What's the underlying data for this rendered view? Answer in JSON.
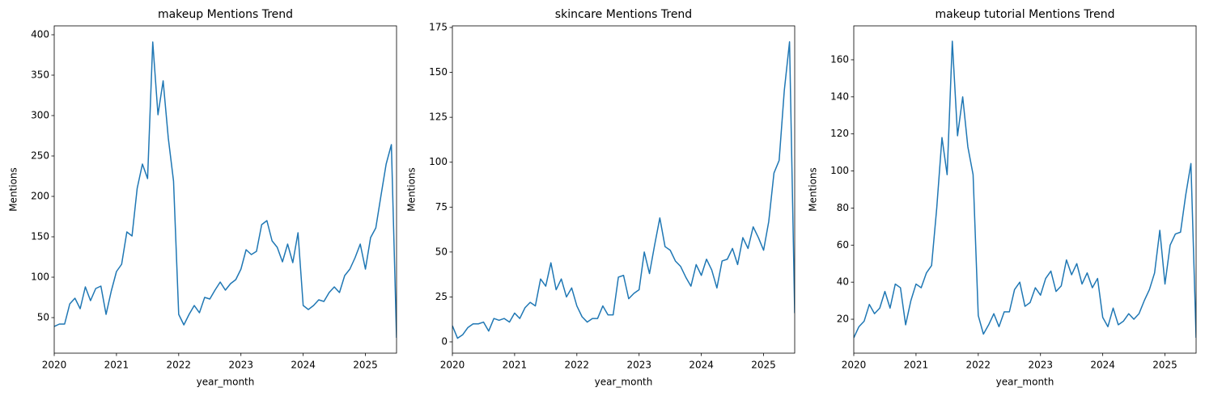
{
  "chart_data": [
    {
      "type": "line",
      "title": "makeup Mentions Trend",
      "xlabel": "year_month",
      "ylabel": "Mentions",
      "color": "#1f77b4",
      "x": [
        2020,
        2020.083,
        2020.167,
        2020.25,
        2020.333,
        2020.417,
        2020.5,
        2020.583,
        2020.667,
        2020.75,
        2020.833,
        2020.917,
        2021,
        2021.083,
        2021.167,
        2021.25,
        2021.333,
        2021.417,
        2021.5,
        2021.583,
        2021.667,
        2021.75,
        2021.833,
        2021.917,
        2022,
        2022.083,
        2022.167,
        2022.25,
        2022.333,
        2022.417,
        2022.5,
        2022.583,
        2022.667,
        2022.75,
        2022.833,
        2022.917,
        2023,
        2023.083,
        2023.167,
        2023.25,
        2023.333,
        2023.417,
        2023.5,
        2023.583,
        2023.667,
        2023.75,
        2023.833,
        2023.917,
        2024,
        2024.083,
        2024.167,
        2024.25,
        2024.333,
        2024.417,
        2024.5,
        2024.583,
        2024.667,
        2024.75,
        2024.833,
        2024.917,
        2025,
        2025.083,
        2025.167,
        2025.25,
        2025.333,
        2025.417,
        2025.5
      ],
      "values": [
        39,
        42,
        42,
        67,
        74,
        61,
        88,
        71,
        86,
        89,
        54,
        83,
        107,
        116,
        156,
        151,
        210,
        240,
        222,
        391,
        301,
        343,
        272,
        219,
        54,
        41,
        54,
        65,
        56,
        75,
        73,
        84,
        94,
        84,
        92,
        97,
        110,
        134,
        128,
        132,
        165,
        170,
        145,
        137,
        119,
        141,
        118,
        155,
        65,
        60,
        65,
        72,
        70,
        81,
        88,
        81,
        102,
        110,
        124,
        141,
        110,
        149,
        161,
        201,
        240,
        264,
        25
      ],
      "xlim": [
        2020,
        2025.5
      ],
      "xticks": [
        2020,
        2021,
        2022,
        2023,
        2024,
        2025
      ],
      "ylim": [
        6,
        411
      ],
      "yticks": [
        50,
        100,
        150,
        200,
        250,
        300,
        350,
        400
      ]
    },
    {
      "type": "line",
      "title": "skincare Mentions Trend",
      "xlabel": "year_month",
      "ylabel": "Mentions",
      "color": "#1f77b4",
      "x": [
        2020,
        2020.083,
        2020.167,
        2020.25,
        2020.333,
        2020.417,
        2020.5,
        2020.583,
        2020.667,
        2020.75,
        2020.833,
        2020.917,
        2021,
        2021.083,
        2021.167,
        2021.25,
        2021.333,
        2021.417,
        2021.5,
        2021.583,
        2021.667,
        2021.75,
        2021.833,
        2021.917,
        2022,
        2022.083,
        2022.167,
        2022.25,
        2022.333,
        2022.417,
        2022.5,
        2022.583,
        2022.667,
        2022.75,
        2022.833,
        2022.917,
        2023,
        2023.083,
        2023.167,
        2023.25,
        2023.333,
        2023.417,
        2023.5,
        2023.583,
        2023.667,
        2023.75,
        2023.833,
        2023.917,
        2024,
        2024.083,
        2024.167,
        2024.25,
        2024.333,
        2024.417,
        2024.5,
        2024.583,
        2024.667,
        2024.75,
        2024.833,
        2024.917,
        2025,
        2025.083,
        2025.167,
        2025.25,
        2025.333,
        2025.417,
        2025.5
      ],
      "values": [
        9,
        2,
        4,
        8,
        10,
        10,
        11,
        6,
        13,
        12,
        13,
        11,
        16,
        13,
        19,
        22,
        20,
        35,
        31,
        44,
        29,
        35,
        25,
        30,
        20,
        14,
        11,
        13,
        13,
        20,
        15,
        15,
        36,
        37,
        24,
        27,
        29,
        50,
        38,
        54,
        69,
        53,
        51,
        45,
        42,
        36,
        31,
        43,
        37,
        46,
        40,
        30,
        45,
        46,
        52,
        43,
        58,
        52,
        64,
        58,
        51,
        67,
        94,
        101,
        140,
        167,
        16
      ],
      "xlim": [
        2020,
        2025.5
      ],
      "xticks": [
        2020,
        2021,
        2022,
        2023,
        2024,
        2025
      ],
      "ylim": [
        -6.3,
        175.9
      ],
      "yticks": [
        0,
        25,
        50,
        75,
        100,
        125,
        150,
        175
      ]
    },
    {
      "type": "line",
      "title": "makeup tutorial Mentions Trend",
      "xlabel": "year_month",
      "ylabel": "Mentions",
      "color": "#1f77b4",
      "x": [
        2020,
        2020.083,
        2020.167,
        2020.25,
        2020.333,
        2020.417,
        2020.5,
        2020.583,
        2020.667,
        2020.75,
        2020.833,
        2020.917,
        2021,
        2021.083,
        2021.167,
        2021.25,
        2021.333,
        2021.417,
        2021.5,
        2021.583,
        2021.667,
        2021.75,
        2021.833,
        2021.917,
        2022,
        2022.083,
        2022.167,
        2022.25,
        2022.333,
        2022.417,
        2022.5,
        2022.583,
        2022.667,
        2022.75,
        2022.833,
        2022.917,
        2023,
        2023.083,
        2023.167,
        2023.25,
        2023.333,
        2023.417,
        2023.5,
        2023.583,
        2023.667,
        2023.75,
        2023.833,
        2023.917,
        2024,
        2024.083,
        2024.167,
        2024.25,
        2024.333,
        2024.417,
        2024.5,
        2024.583,
        2024.667,
        2024.75,
        2024.833,
        2024.917,
        2025,
        2025.083,
        2025.167,
        2025.25,
        2025.333,
        2025.417,
        2025.5
      ],
      "values": [
        10,
        16,
        19,
        28,
        23,
        26,
        35,
        26,
        39,
        37,
        17,
        30,
        39,
        37,
        45,
        49,
        80,
        118,
        98,
        170,
        119,
        140,
        113,
        98,
        22,
        12,
        17,
        23,
        16,
        24,
        24,
        36,
        40,
        27,
        29,
        37,
        33,
        42,
        46,
        35,
        38,
        52,
        44,
        50,
        39,
        45,
        37,
        42,
        21,
        16,
        26,
        17,
        19,
        23,
        20,
        23,
        30,
        36,
        45,
        68,
        39,
        60,
        66,
        67,
        87,
        104,
        10
      ],
      "xlim": [
        2020,
        2025.5
      ],
      "xticks": [
        2020,
        2021,
        2022,
        2023,
        2024,
        2025
      ],
      "ylim": [
        1.7,
        178.3
      ],
      "yticks": [
        20,
        40,
        60,
        80,
        100,
        120,
        140,
        160
      ]
    }
  ]
}
